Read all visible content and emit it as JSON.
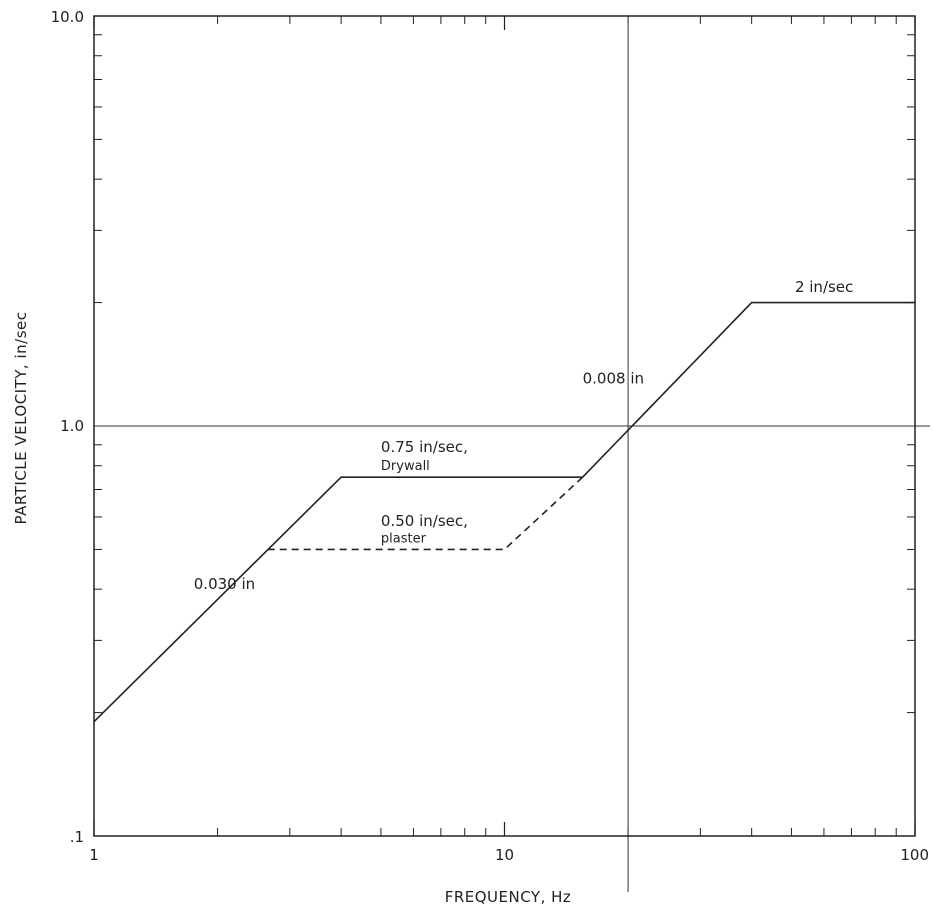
{
  "chart_data": {
    "type": "line",
    "title": "",
    "xlabel": "FREQUENCY, Hz",
    "ylabel": "PARTICLE VELOCITY, in/sec",
    "x_scale": "log",
    "y_scale": "log",
    "xlim": [
      1,
      100
    ],
    "ylim": [
      0.1,
      10
    ],
    "x_ticks": [
      {
        "value": 1,
        "label": "1"
      },
      {
        "value": 10,
        "label": "10"
      },
      {
        "value": 100,
        "label": "100"
      }
    ],
    "y_ticks": [
      {
        "value": 0.1,
        "label": ".1"
      },
      {
        "value": 1,
        "label": "1.0"
      },
      {
        "value": 10,
        "label": "10.0"
      }
    ],
    "reference_lines": {
      "x": 20,
      "y": 1
    },
    "series": [
      {
        "style": "solid",
        "color": "#222222",
        "points": [
          [
            1,
            0.19
          ],
          [
            4,
            0.75
          ],
          [
            15.5,
            0.75
          ],
          [
            40,
            2
          ],
          [
            100,
            2
          ]
        ]
      },
      {
        "style": "dashed",
        "color": "#222222",
        "points": [
          [
            2.65,
            0.5
          ],
          [
            10,
            0.5
          ],
          [
            15.5,
            0.75
          ]
        ]
      }
    ],
    "annotations": [
      {
        "text": "0.030 in",
        "x": 1.75,
        "y": 0.4
      },
      {
        "text": "0.75 in/sec,",
        "x": 5.0,
        "y": 0.865
      },
      {
        "text": "Drywall",
        "x": 5.0,
        "y": 0.78
      },
      {
        "text": "0.50 in/sec,",
        "x": 5.0,
        "y": 0.57
      },
      {
        "text": "plaster",
        "x": 5.0,
        "y": 0.52
      },
      {
        "text": "0.008 in",
        "x": 15.5,
        "y": 1.27
      },
      {
        "text": "2 in/sec",
        "x": 51,
        "y": 2.12
      }
    ]
  }
}
